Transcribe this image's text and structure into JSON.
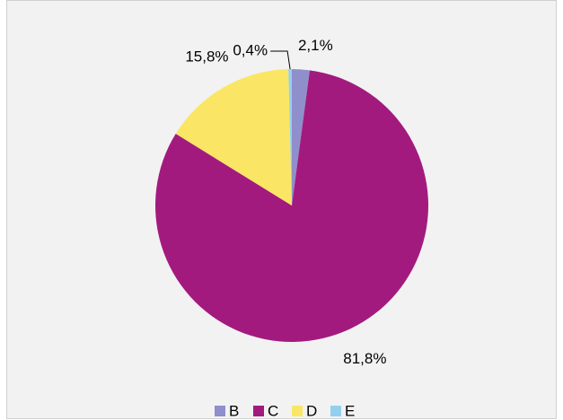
{
  "chart_data": {
    "type": "pie",
    "categories": [
      "B",
      "C",
      "D",
      "E"
    ],
    "values": [
      2.1,
      81.8,
      15.8,
      0.4
    ],
    "value_labels": [
      "2,1%",
      "81,8%",
      "15,8%",
      "0,4%"
    ],
    "colors": [
      "#8f8fcc",
      "#a31a7f",
      "#fae664",
      "#93d0ee"
    ],
    "legend": "bottom"
  }
}
